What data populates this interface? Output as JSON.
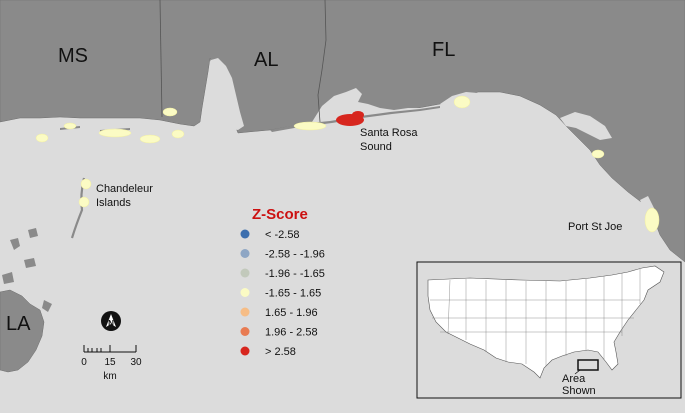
{
  "states": {
    "ms": "MS",
    "al": "AL",
    "fl": "FL",
    "la": "LA"
  },
  "places": {
    "santa_rosa_1": "Santa Rosa",
    "santa_rosa_2": "Sound",
    "chandeleur_1": "Chandeleur",
    "chandeleur_2": "Islands",
    "port_st_joe": "Port St Joe"
  },
  "legend": {
    "title": "Z-Score",
    "items": [
      {
        "label": "< -2.58",
        "color": "#3d6fae"
      },
      {
        "label": "-2.58 - -1.96",
        "color": "#8ea6c4"
      },
      {
        "label": "-1.96 - -1.65",
        "color": "#c2c9bb"
      },
      {
        "label": "-1.65 - 1.65",
        "color": "#fbfbc4"
      },
      {
        "label": "1.65 - 1.96",
        "color": "#f6bd86"
      },
      {
        "label": "1.96 - 2.58",
        "color": "#e87b52"
      },
      {
        "label": "> 2.58",
        "color": "#d7261e"
      }
    ]
  },
  "scale": {
    "ticks": [
      "0",
      "15",
      "30"
    ],
    "unit": "km"
  },
  "inset": {
    "label_1": "Area",
    "label_2": "Shown"
  },
  "colors": {
    "land": "#8a8a8a",
    "water": "#dcdcdc",
    "hotspot": "#d7261e",
    "neutral": "#fbfbc4"
  },
  "icons": {
    "north": "north-arrow-icon"
  }
}
